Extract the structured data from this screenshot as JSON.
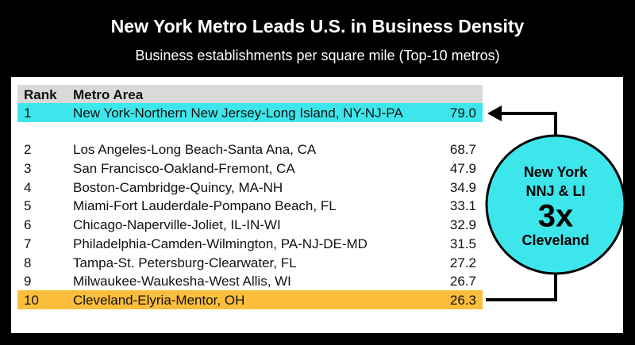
{
  "header": {
    "title": "New York Metro Leads U.S. in Business Density",
    "subtitle": "Business establishments per square mile (Top-10 metros)"
  },
  "table": {
    "columns": [
      "Rank",
      "Metro Area"
    ],
    "rows": [
      [
        "1",
        "New York-Northern New Jersey-Long Island, NY-NJ-PA",
        "79.0"
      ],
      [
        "2",
        "Los Angeles-Long Beach-Santa Ana, CA",
        "68.7"
      ],
      [
        "3",
        "San Francisco-Oakland-Fremont, CA",
        "47.9"
      ],
      [
        "4",
        "Boston-Cambridge-Quincy, MA-NH",
        "34.9"
      ],
      [
        "5",
        "Miami-Fort Lauderdale-Pompano Beach, FL",
        "33.1"
      ],
      [
        "6",
        "Chicago-Naperville-Joliet, IL-IN-WI",
        "32.9"
      ],
      [
        "7",
        "Philadelphia-Camden-Wilmington, PA-NJ-DE-MD",
        "31.5"
      ],
      [
        "8",
        "Tampa-St. Petersburg-Clearwater, FL",
        "27.2"
      ],
      [
        "9",
        "Milwaukee-Waukesha-West Allis, WI",
        "26.7"
      ],
      [
        "10",
        "Cleveland-Elyria-Mentor, OH",
        "26.3"
      ]
    ]
  },
  "callout": {
    "lines": [
      "New York",
      "NNJ & LI",
      "3x",
      "Cleveland"
    ]
  }
}
